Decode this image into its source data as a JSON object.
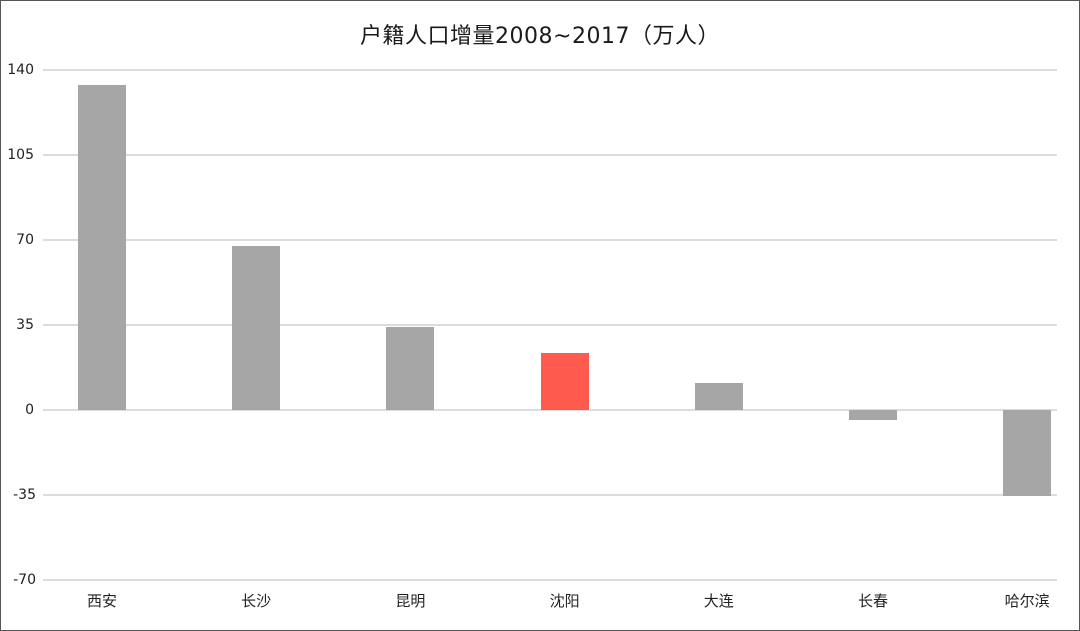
{
  "chart_data": {
    "type": "bar",
    "title": "户籍人口增量2008~2017（万人）",
    "xlabel": "",
    "ylabel": "",
    "categories": [
      "西安",
      "长沙",
      "昆明",
      "沈阳",
      "大连",
      "长春",
      "哈尔滨"
    ],
    "values": [
      134,
      67.5,
      34.3,
      23.3,
      11,
      -4,
      -35.4
    ],
    "highlight": {
      "category": "沈阳",
      "color": "#ff5a4e"
    },
    "bar_color": "#a6a6a6",
    "ylim": [
      -70,
      140
    ],
    "yticks": [
      140,
      105,
      70,
      35,
      0,
      -35,
      -70
    ],
    "grid": true,
    "legend": "none"
  },
  "title": "户籍人口增量2008~2017（万人）",
  "yaxis": {
    "ticks": [
      "140",
      "105",
      "70",
      "35",
      "0",
      "-35",
      "-70"
    ]
  },
  "xaxis": {
    "labels": [
      "西安",
      "长沙",
      "昆明",
      "沈阳",
      "大连",
      "长春",
      "哈尔滨"
    ]
  }
}
